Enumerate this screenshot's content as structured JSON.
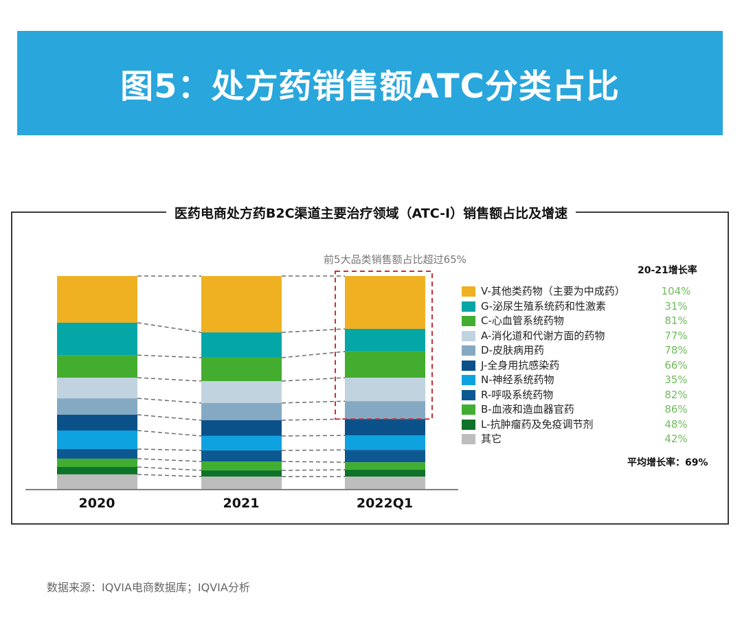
{
  "banner": {
    "title": "图5：处方药销售额ATC分类占比"
  },
  "footer": {
    "source": "数据来源：IQVIA电商数据库；IQVIA分析"
  },
  "chart_data": {
    "type": "bar",
    "stacked": true,
    "unit": "percent share of sales",
    "title": "医药电商处方药B2C渠道主要治疗领域（ATC-I）销售额占比及增速",
    "subtitle": "前5大品类销售额占比超过65%",
    "xlabel": "",
    "ylabel": "",
    "ylim": [
      0,
      100
    ],
    "grid": false,
    "categories": [
      "2020",
      "2021",
      "2022Q1"
    ],
    "highlight": {
      "category": "2022Q1",
      "series_top_n": 5,
      "style": "red-dashed-box"
    },
    "legend": {
      "placement": "right",
      "rate_header": "20-21增长率",
      "average_label": "平均增长率：69%"
    },
    "series": [
      {
        "name": "V-其他类药物（主要为中成药）",
        "color": "#efb022",
        "growth": "104%",
        "values": [
          21.9,
          26.5,
          24.8
        ]
      },
      {
        "name": "G-泌尿生殖系统药和性激素",
        "color": "#05a6a6",
        "growth": "31%",
        "values": [
          15.2,
          11.9,
          10.6
        ]
      },
      {
        "name": "C-心血管系统药物",
        "color": "#43ad2f",
        "growth": "81%",
        "values": [
          10.6,
          11.0,
          12.3
        ]
      },
      {
        "name": "A-消化道和代谢方面的药物",
        "color": "#c2d3e0",
        "growth": "77%",
        "values": [
          9.7,
          10.3,
          11.0
        ]
      },
      {
        "name": "D-皮肤病用药",
        "color": "#86a9c3",
        "growth": "78%",
        "values": [
          7.7,
          8.1,
          8.4
        ]
      },
      {
        "name": "J-全身用抗感染药",
        "color": "#0b5189",
        "growth": "66%",
        "values": [
          7.4,
          7.4,
          7.7
        ]
      },
      {
        "name": "N-神经系统药物",
        "color": "#0fa2e0",
        "growth": "35%",
        "values": [
          8.7,
          6.8,
          6.8
        ]
      },
      {
        "name": "R-呼吸系统药物",
        "color": "#0c5890",
        "growth": "82%",
        "values": [
          4.5,
          5.2,
          5.8
        ]
      },
      {
        "name": "B-血液和造血器官药",
        "color": "#41ae32",
        "growth": "86%",
        "values": [
          3.9,
          4.2,
          3.5
        ]
      },
      {
        "name": "L-抗肿瘤药及免疫调节剂",
        "color": "#0e7229",
        "growth": "48%",
        "values": [
          3.5,
          2.9,
          3.2
        ]
      },
      {
        "name": "其它",
        "color": "#bdbdbd",
        "growth": "42%",
        "values": [
          6.8,
          5.8,
          5.8
        ]
      }
    ]
  }
}
